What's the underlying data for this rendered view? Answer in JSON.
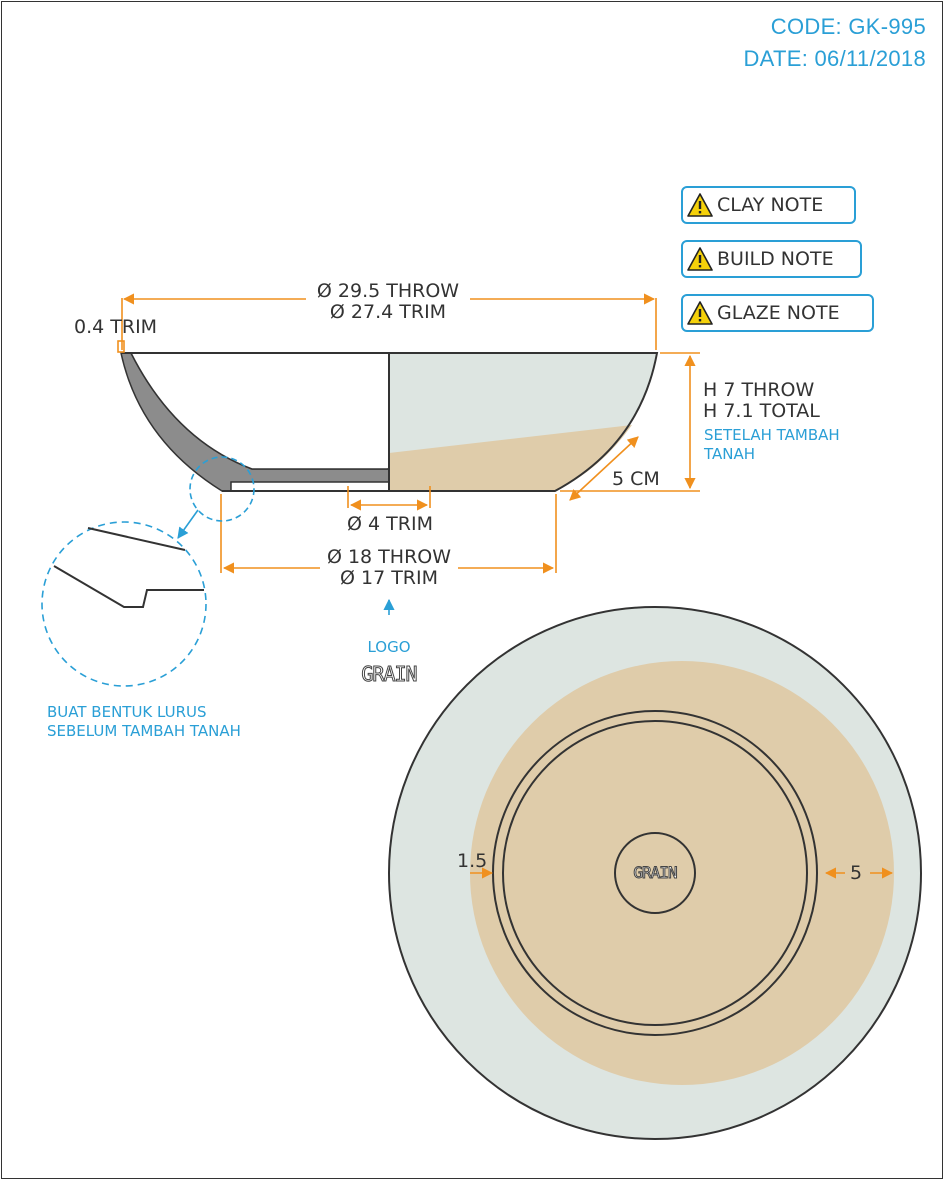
{
  "header": {
    "code": "CODE: GK-995",
    "date": "DATE: 06/11/2018"
  },
  "notes": [
    {
      "label": "CLAY NOTE",
      "icon": "warning-icon"
    },
    {
      "label": "BUILD NOTE",
      "icon": "warning-icon"
    },
    {
      "label": "GLAZE NOTE",
      "icon": "warning-icon"
    }
  ],
  "side_view": {
    "diameter_top_1": "Ø 29.5 THROW",
    "diameter_top_2": "Ø 27.4 TRIM",
    "trim_thickness": "0.4 TRIM",
    "height_1": "H 7 THROW",
    "height_2": "H 7.1 TOTAL",
    "height_note_1": "SETELAH TAMBAH",
    "height_note_2": "TANAH",
    "glaze_band": "5 CM",
    "inner_foot": "Ø 4 TRIM",
    "foot_1": "Ø 18 THROW",
    "foot_2": "Ø 17 TRIM",
    "logo_label": "LOGO",
    "logo_text": "GRAIN",
    "detail_note_1": "BUAT BENTUK LURUS",
    "detail_note_2": "SEBELUM TAMBAH TANAH"
  },
  "bottom_view": {
    "left_dim": "1.5",
    "right_dim": "5",
    "stamp": "GRAIN"
  },
  "colors": {
    "accent": "#2a9fd6",
    "dimension": "#f0901e",
    "glaze_blue": "#dde5e1",
    "glaze_tan": "#dfccaa",
    "outline": "#333333"
  }
}
